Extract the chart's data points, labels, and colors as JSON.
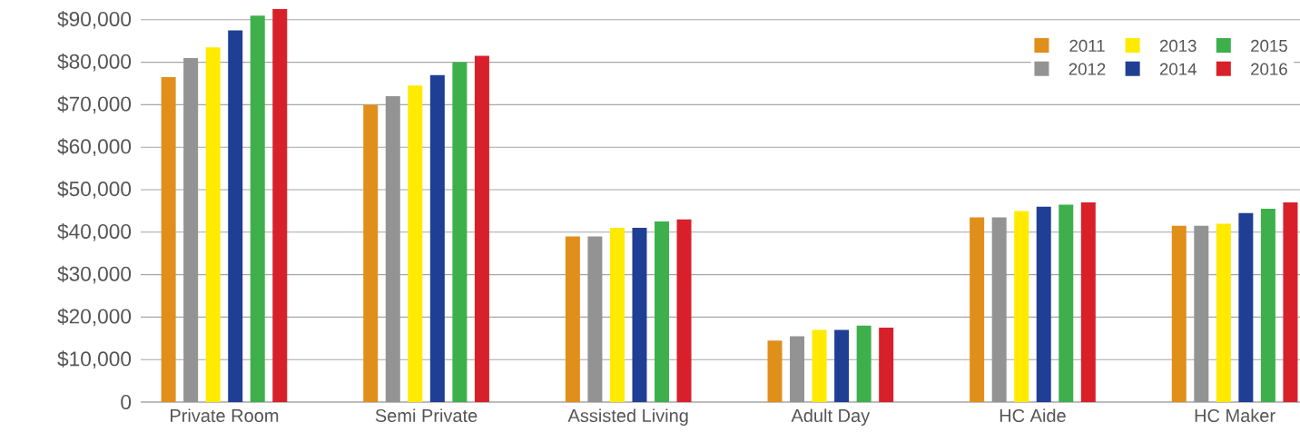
{
  "chart_data": {
    "type": "bar",
    "categories": [
      "Private Room",
      "Semi Private",
      "Assisted Living",
      "Adult Day",
      "HC Aide",
      "HC Maker"
    ],
    "series": [
      {
        "name": "2011",
        "color": "#e08f1b",
        "values": [
          76500,
          70000,
          39000,
          14500,
          43500,
          41500
        ]
      },
      {
        "name": "2012",
        "color": "#939393",
        "values": [
          81000,
          72000,
          39000,
          15500,
          43500,
          41500
        ]
      },
      {
        "name": "2013",
        "color": "#ffea00",
        "values": [
          83500,
          74500,
          41000,
          17000,
          45000,
          42000
        ]
      },
      {
        "name": "2014",
        "color": "#1f3f94",
        "values": [
          87500,
          77000,
          41000,
          17000,
          46000,
          44500
        ]
      },
      {
        "name": "2015",
        "color": "#3db04b",
        "values": [
          91000,
          80000,
          42500,
          18000,
          46500,
          45500
        ]
      },
      {
        "name": "2016",
        "color": "#d8202a",
        "values": [
          92500,
          81500,
          43000,
          17500,
          47000,
          47000
        ]
      }
    ],
    "ylim": [
      0,
      93000
    ],
    "yticks": [
      0,
      {
        "value": 10000,
        "label": "$10,000"
      },
      {
        "value": 20000,
        "label": "$20,000"
      },
      {
        "value": 30000,
        "label": "$30,000"
      },
      {
        "value": 40000,
        "label": "$40,000"
      },
      {
        "value": 50000,
        "label": "$50,000"
      },
      {
        "value": 60000,
        "label": "$60,000"
      },
      {
        "value": 70000,
        "label": "$70,000"
      },
      {
        "value": 80000,
        "label": "$80,000"
      },
      {
        "value": 90000,
        "label": "$90,000"
      }
    ],
    "grid": "y",
    "legend": "top right"
  }
}
